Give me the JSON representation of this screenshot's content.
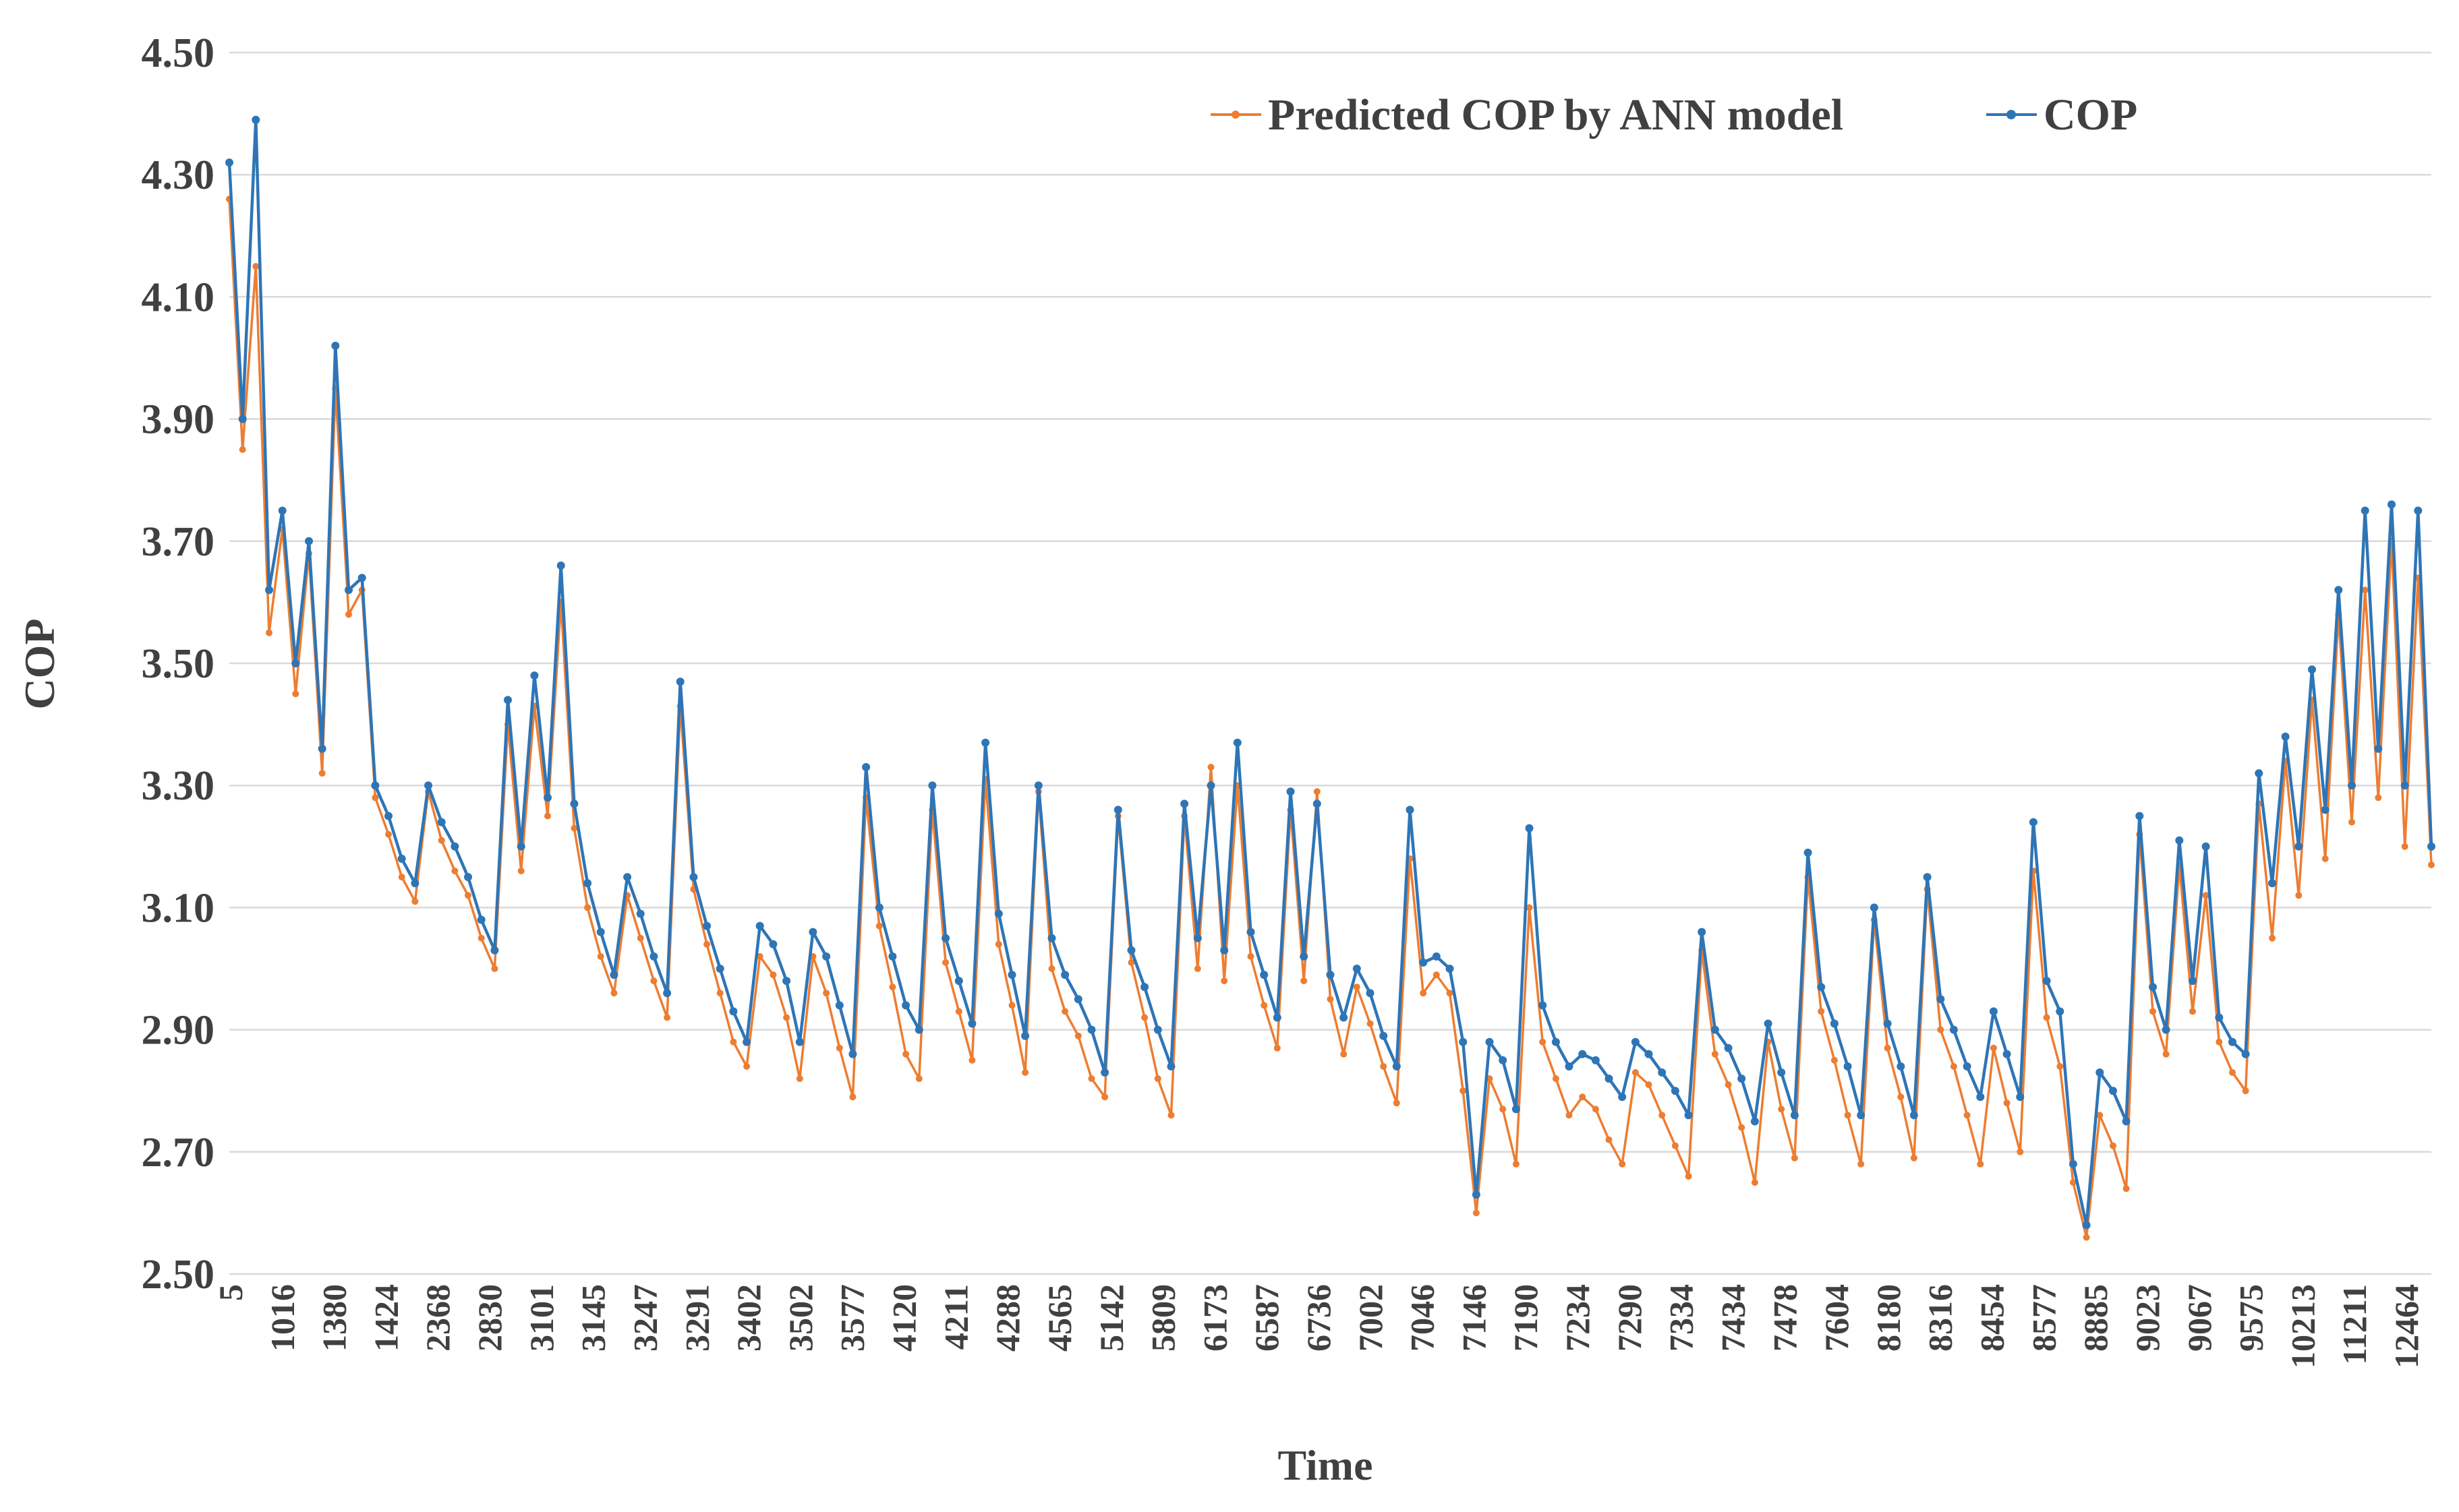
{
  "chart_data": {
    "type": "line",
    "title": "",
    "xlabel": "Time",
    "ylabel": "COP",
    "ylim": [
      2.5,
      4.5
    ],
    "grid": true,
    "legend_position": "top-right",
    "y_ticks": [
      "2.50",
      "2.70",
      "2.90",
      "3.10",
      "3.30",
      "3.50",
      "3.70",
      "3.90",
      "4.10",
      "4.30",
      "4.50"
    ],
    "x_tick_labels": [
      "5",
      "1016",
      "1380",
      "1424",
      "2368",
      "2830",
      "3101",
      "3145",
      "3247",
      "3291",
      "3402",
      "3502",
      "3577",
      "4120",
      "4211",
      "4288",
      "4565",
      "5142",
      "5809",
      "6173",
      "6587",
      "6736",
      "7002",
      "7046",
      "7146",
      "7190",
      "7234",
      "7290",
      "7334",
      "7434",
      "7478",
      "7604",
      "8180",
      "8316",
      "8454",
      "8577",
      "8885",
      "9023",
      "9067",
      "9575",
      "10213",
      "11211",
      "12464"
    ],
    "series": [
      {
        "name": "Predicted COP by ANN model",
        "color": "#ED7D31",
        "values": [
          4.26,
          3.85,
          4.15,
          3.55,
          3.72,
          3.45,
          3.68,
          3.32,
          3.95,
          3.58,
          3.62,
          3.28,
          3.22,
          3.15,
          3.11,
          3.29,
          3.21,
          3.16,
          3.12,
          3.05,
          3.0,
          3.4,
          3.16,
          3.43,
          3.25,
          3.6,
          3.23,
          3.1,
          3.02,
          2.96,
          3.12,
          3.05,
          2.98,
          2.92,
          3.43,
          3.13,
          3.04,
          2.96,
          2.88,
          2.84,
          3.02,
          2.99,
          2.92,
          2.82,
          3.02,
          2.96,
          2.87,
          2.79,
          3.28,
          3.07,
          2.97,
          2.86,
          2.82,
          3.26,
          3.01,
          2.93,
          2.85,
          3.31,
          3.04,
          2.94,
          2.83,
          3.29,
          3.0,
          2.93,
          2.89,
          2.82,
          2.79,
          3.25,
          3.01,
          2.92,
          2.82,
          2.76,
          3.25,
          3.0,
          3.33,
          2.98,
          3.3,
          3.02,
          2.94,
          2.87,
          3.26,
          2.98,
          3.29,
          2.95,
          2.86,
          2.97,
          2.91,
          2.84,
          2.78,
          3.18,
          2.96,
          2.99,
          2.96,
          2.8,
          2.6,
          2.82,
          2.77,
          2.68,
          3.1,
          2.88,
          2.82,
          2.76,
          2.79,
          2.77,
          2.72,
          2.68,
          2.83,
          2.81,
          2.76,
          2.71,
          2.66,
          3.03,
          2.86,
          2.81,
          2.74,
          2.65,
          2.88,
          2.77,
          2.69,
          3.15,
          2.93,
          2.85,
          2.76,
          2.68,
          3.08,
          2.87,
          2.79,
          2.69,
          3.13,
          2.9,
          2.84,
          2.76,
          2.68,
          2.87,
          2.78,
          2.7,
          3.16,
          2.92,
          2.84,
          2.65,
          2.56,
          2.76,
          2.71,
          2.64,
          3.22,
          2.93,
          2.86,
          3.17,
          2.93,
          3.12,
          2.88,
          2.83,
          2.8,
          3.27,
          3.05,
          3.34,
          3.12,
          3.44,
          3.18,
          3.58,
          3.24,
          3.62,
          3.28,
          3.7,
          3.2,
          3.64,
          3.17
        ]
      },
      {
        "name": "COP",
        "color": "#2E75B6",
        "values": [
          4.32,
          3.9,
          4.39,
          3.62,
          3.75,
          3.5,
          3.7,
          3.36,
          4.02,
          3.62,
          3.64,
          3.3,
          3.25,
          3.18,
          3.14,
          3.3,
          3.24,
          3.2,
          3.15,
          3.08,
          3.03,
          3.44,
          3.2,
          3.48,
          3.28,
          3.66,
          3.27,
          3.14,
          3.06,
          2.99,
          3.15,
          3.09,
          3.02,
          2.96,
          3.47,
          3.15,
          3.07,
          3.0,
          2.93,
          2.88,
          3.07,
          3.04,
          2.98,
          2.88,
          3.06,
          3.02,
          2.94,
          2.86,
          3.33,
          3.1,
          3.02,
          2.94,
          2.9,
          3.3,
          3.05,
          2.98,
          2.91,
          3.37,
          3.09,
          2.99,
          2.89,
          3.3,
          3.05,
          2.99,
          2.95,
          2.9,
          2.83,
          3.26,
          3.03,
          2.97,
          2.9,
          2.84,
          3.27,
          3.05,
          3.3,
          3.03,
          3.37,
          3.06,
          2.99,
          2.92,
          3.29,
          3.02,
          3.27,
          2.99,
          2.92,
          3.0,
          2.96,
          2.89,
          2.84,
          3.26,
          3.01,
          3.02,
          3.0,
          2.88,
          2.63,
          2.88,
          2.85,
          2.77,
          3.23,
          2.94,
          2.88,
          2.84,
          2.86,
          2.85,
          2.82,
          2.79,
          2.88,
          2.86,
          2.83,
          2.8,
          2.76,
          3.06,
          2.9,
          2.87,
          2.82,
          2.75,
          2.91,
          2.83,
          2.76,
          3.19,
          2.97,
          2.91,
          2.84,
          2.76,
          3.1,
          2.91,
          2.84,
          2.76,
          3.15,
          2.95,
          2.9,
          2.84,
          2.79,
          2.93,
          2.86,
          2.79,
          3.24,
          2.98,
          2.93,
          2.68,
          2.58,
          2.83,
          2.8,
          2.75,
          3.25,
          2.97,
          2.9,
          3.21,
          2.98,
          3.2,
          2.92,
          2.88,
          2.86,
          3.32,
          3.14,
          3.38,
          3.2,
          3.49,
          3.26,
          3.62,
          3.3,
          3.75,
          3.36,
          3.76,
          3.3,
          3.75,
          3.2
        ]
      }
    ]
  }
}
